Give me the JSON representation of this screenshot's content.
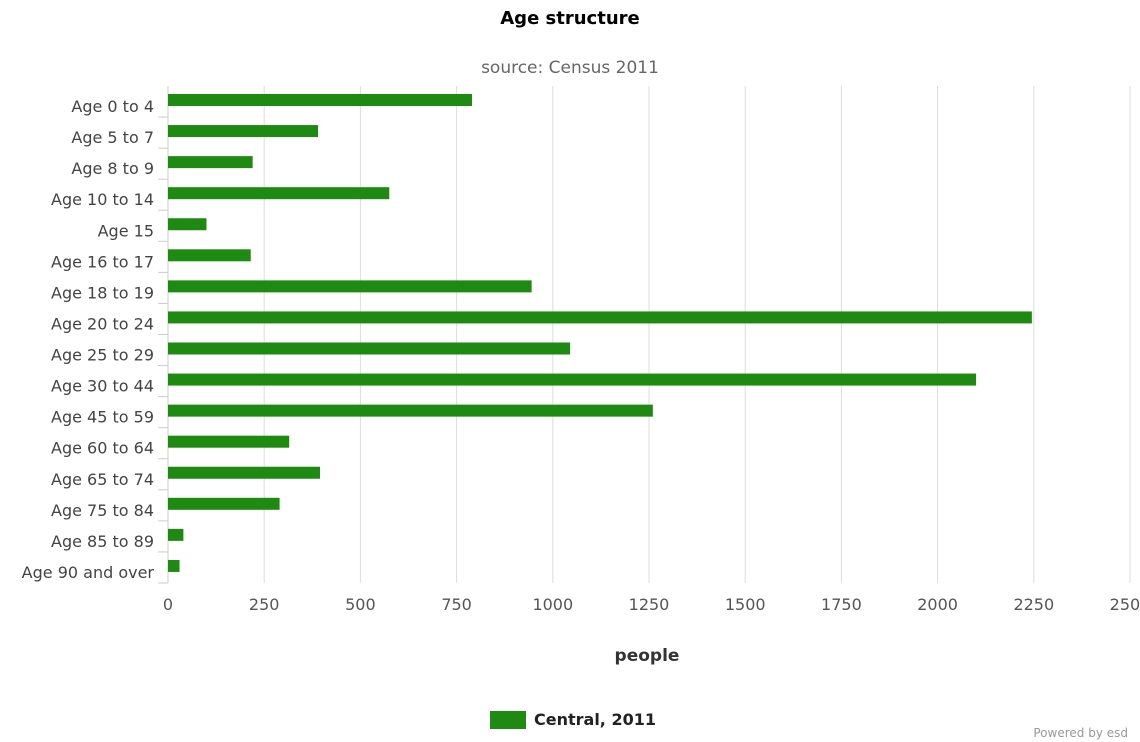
{
  "chart_data": {
    "type": "bar",
    "orientation": "horizontal",
    "title": "Age structure",
    "subtitle": "source: Census 2011",
    "xlabel": "people",
    "ylabel": "",
    "xlim": [
      0,
      2500
    ],
    "xticks": [
      0,
      250,
      500,
      750,
      1000,
      1250,
      1500,
      1750,
      2000,
      2250,
      2500
    ],
    "grid": true,
    "legend_position": "bottom",
    "categories": [
      "Age 0 to 4",
      "Age 5 to 7",
      "Age 8 to 9",
      "Age 10 to 14",
      "Age 15",
      "Age 16 to 17",
      "Age 18 to 19",
      "Age 20 to 24",
      "Age 25 to 29",
      "Age 30 to 44",
      "Age 45 to 59",
      "Age 60 to 64",
      "Age 65 to 74",
      "Age 75 to 84",
      "Age 85 to 89",
      "Age 90 and over"
    ],
    "series": [
      {
        "name": "Central, 2011",
        "color": "#1f8a11",
        "values": [
          790,
          390,
          220,
          575,
          100,
          215,
          945,
          2245,
          1045,
          2100,
          1260,
          315,
          395,
          290,
          40,
          30
        ]
      }
    ]
  },
  "footer": {
    "credit": "Powered by esd"
  }
}
